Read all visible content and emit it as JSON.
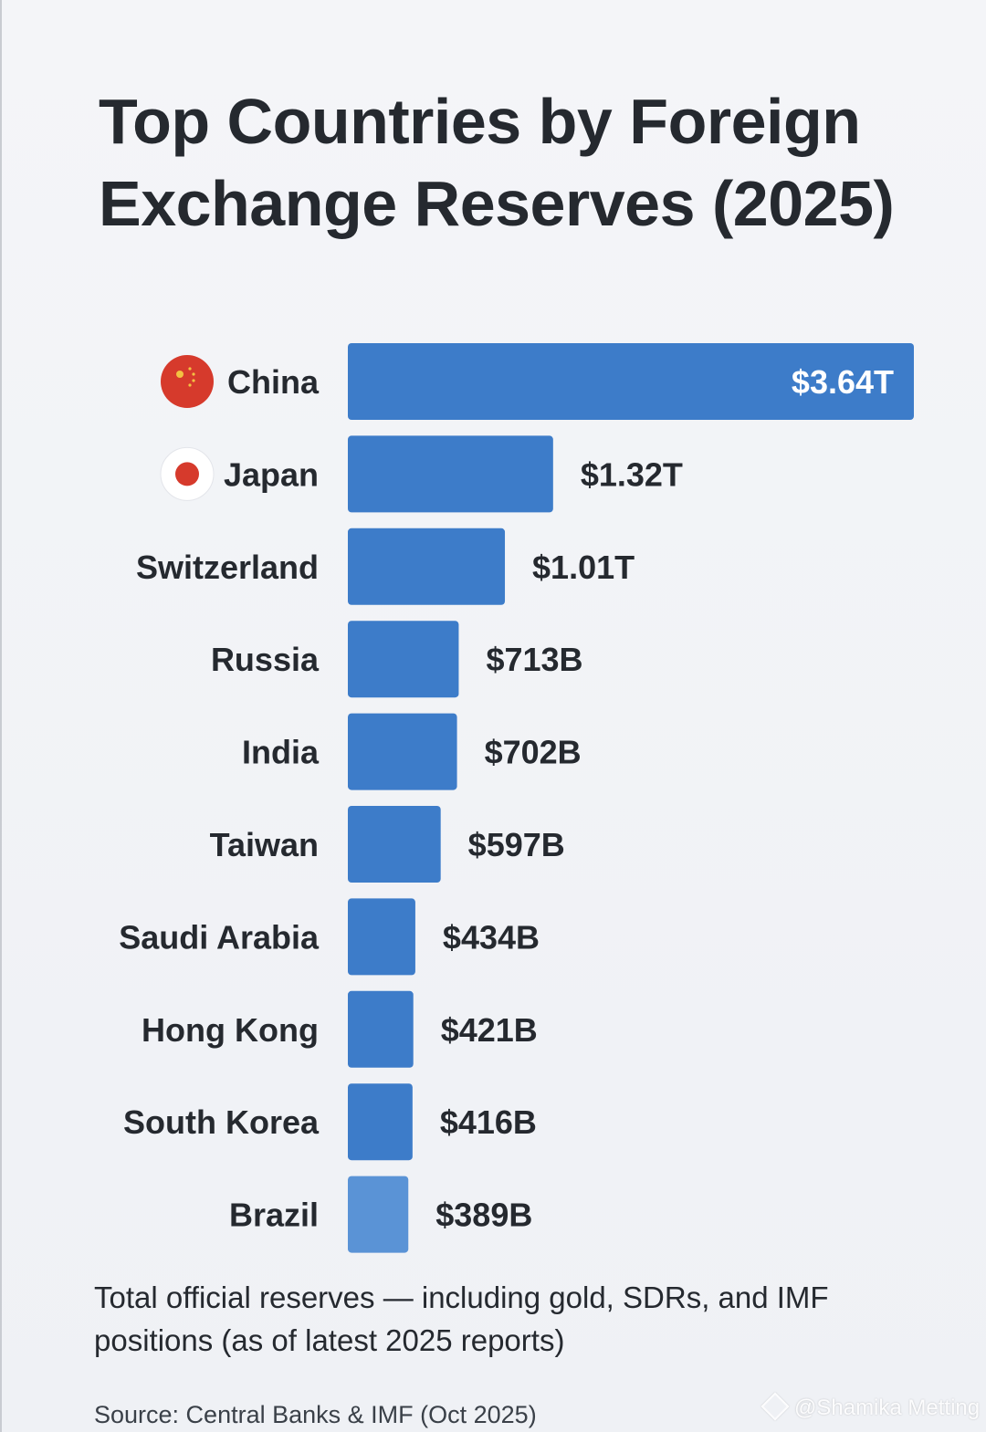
{
  "title": "Top Countries by Foreign Exchange Reserves (2025)",
  "footnote": "Total official reserves — including gold, SDRs, and IMF positions (as of latest 2025 reports)",
  "source": "Source: Central Banks & IMF (Oct 2025)",
  "watermark": "@Shamika Metting",
  "colors": {
    "bar": "#3d7cc9",
    "bar_light": "#5a93d6",
    "inside_label": "#ffffff",
    "outside_label": "#25292f",
    "country_label": "#25292f",
    "china_flag": "#d63a2c",
    "japan_flag_disc": "#d63a2c",
    "japan_flag_bg": "#ffffff"
  },
  "chart_data": {
    "type": "bar",
    "orientation": "horizontal",
    "title": "Top Countries by Foreign Exchange Reserves (2025)",
    "unit": "USD billions",
    "categories": [
      "China",
      "Japan",
      "Switzerland",
      "Russia",
      "India",
      "Taiwan",
      "Saudi Arabia",
      "Hong Kong",
      "South Korea",
      "Brazil"
    ],
    "values": [
      3640,
      1320,
      1010,
      713,
      702,
      597,
      434,
      421,
      416,
      389
    ],
    "value_labels": [
      "$3.64T",
      "$1.32T",
      "$1.01T",
      "$713B",
      "$702B",
      "$597B",
      "$434B",
      "$421B",
      "$416B",
      "$389B"
    ],
    "flags": [
      "china-flag-icon",
      "japan-flag-icon",
      null,
      null,
      null,
      null,
      null,
      null,
      null,
      null
    ],
    "xlim": [
      0,
      3640
    ],
    "grid": false,
    "legend": "none",
    "axes_visible": false
  }
}
